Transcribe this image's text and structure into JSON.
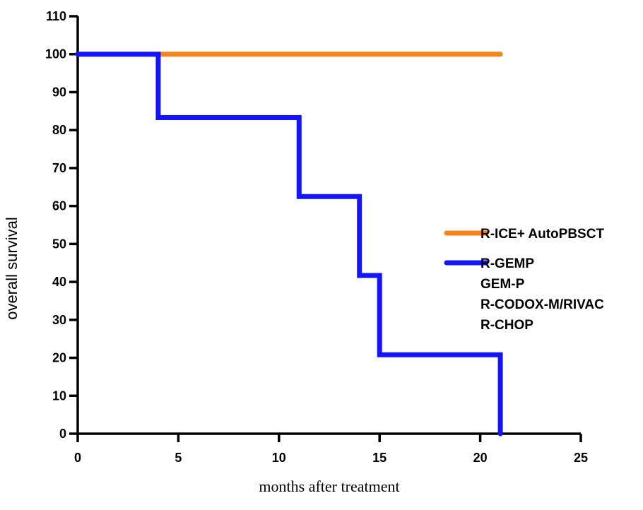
{
  "chart_data": {
    "type": "line",
    "step": true,
    "xlabel": "months after treatment",
    "ylabel": "overall survival",
    "xlim": [
      0,
      25
    ],
    "ylim": [
      0,
      110
    ],
    "xticks": [
      0,
      5,
      10,
      15,
      20,
      25
    ],
    "yticks": [
      0,
      10,
      20,
      30,
      40,
      50,
      60,
      70,
      80,
      90,
      100,
      110
    ],
    "grid": false,
    "legend_position": "right",
    "series": [
      {
        "name": "R-ICE+ AutoPBSCT",
        "color": "#f5841f",
        "x": [
          0,
          21
        ],
        "y": [
          100,
          100
        ]
      },
      {
        "name": "R-GEMP",
        "legend_lines": [
          "R-GEMP",
          "GEM-P",
          "R-CODOX-M/RIVAC",
          "R-CHOP"
        ],
        "color": "#1414ff",
        "x": [
          0,
          4,
          11,
          14,
          15,
          21
        ],
        "y": [
          100,
          83.3,
          62.5,
          41.7,
          20.8,
          0
        ]
      }
    ]
  }
}
